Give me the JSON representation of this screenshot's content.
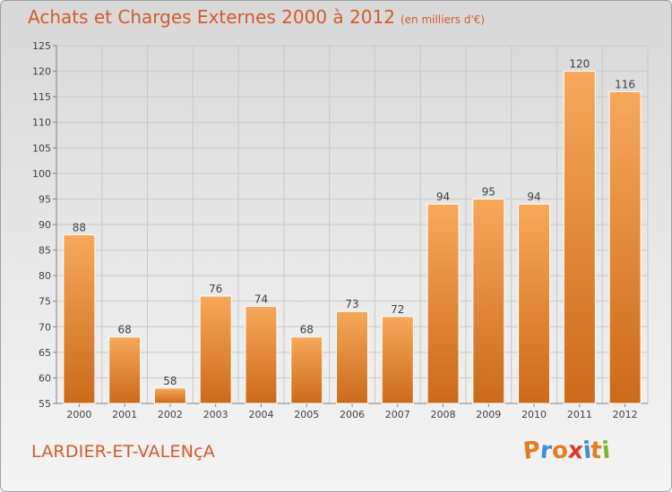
{
  "header": {
    "title": "Achats et Charges Externes 2000 à 2012",
    "subtitle": "(en milliers d'€)"
  },
  "footer": {
    "place": "LARDIER-ET-VALENçA",
    "logo_letters": [
      "P",
      "r",
      "o",
      "x",
      "i",
      "t",
      "i"
    ],
    "logo_colors": [
      "#e57c1f",
      "#3c8fd8",
      "#e57c1f",
      "#d93a2b",
      "#3c8fd8",
      "#e57c1f",
      "#7ab82b"
    ]
  },
  "colors": {
    "bar_top": "#f7a85a",
    "bar_bottom": "#cc6a1a",
    "text": "#d35b28",
    "grid": "#c8c8c8"
  },
  "chart_data": {
    "type": "bar",
    "title": "Achats et Charges Externes 2000 à 2012",
    "xlabel": "",
    "ylabel": "",
    "categories": [
      "2000",
      "2001",
      "2002",
      "2003",
      "2004",
      "2005",
      "2006",
      "2007",
      "2008",
      "2009",
      "2010",
      "2011",
      "2012"
    ],
    "values": [
      88,
      68,
      58,
      76,
      74,
      68,
      73,
      72,
      94,
      95,
      94,
      120,
      116
    ],
    "ylim": [
      55,
      125
    ],
    "yticks": [
      55,
      60,
      65,
      70,
      75,
      80,
      85,
      90,
      95,
      100,
      105,
      110,
      115,
      120,
      125
    ],
    "grid": true,
    "data_labels": true
  }
}
